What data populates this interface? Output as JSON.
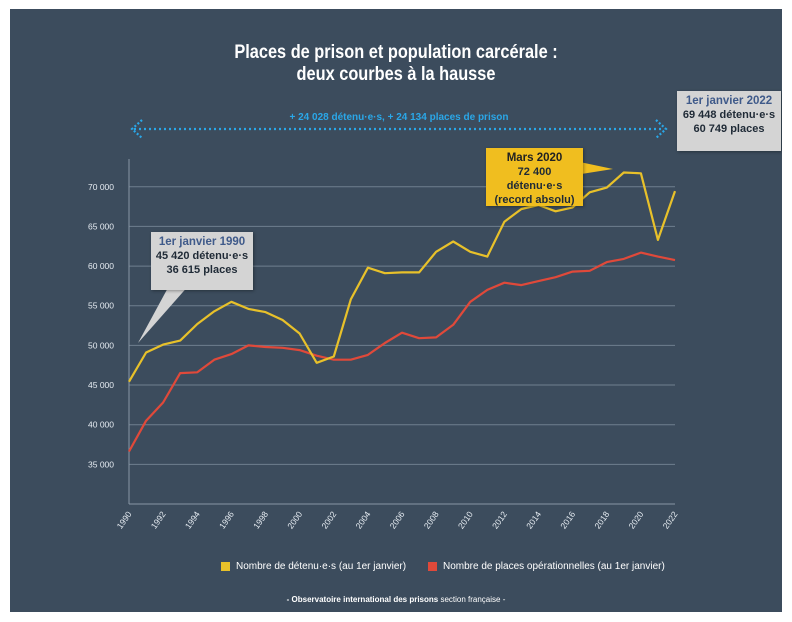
{
  "title_line1": "Places de prison et population carcérale :",
  "title_line2": "deux courbes à la hausse",
  "banner_text": "+ 24 028 détenu·e·s, + 24 134 places de prison",
  "callouts": {
    "c1990": {
      "line1": "1er janvier 1990",
      "line2": "45 420 détenu·e·s",
      "line3": "36 615 places"
    },
    "c2020": {
      "line1": "Mars 2020",
      "line2": "72 400 détenu·e·s",
      "line3": "(record absolu)"
    },
    "c2022": {
      "line1": "1er janvier 2022",
      "line2": "69 448 détenu·e·s",
      "line3": "60 749 places"
    }
  },
  "credit_bold": "- Observatoire international des prisons",
  "credit_normal": "section française -",
  "colors": {
    "background": "#3c4c5d",
    "detenus": "#e8c12a",
    "places": "#e0493a",
    "banner": "#2aa7e8"
  },
  "chart_data": {
    "type": "line",
    "x": [
      1990,
      1991,
      1992,
      1993,
      1994,
      1995,
      1996,
      1997,
      1998,
      1999,
      2000,
      2001,
      2002,
      2003,
      2004,
      2005,
      2006,
      2007,
      2008,
      2009,
      2010,
      2011,
      2012,
      2013,
      2014,
      2015,
      2016,
      2017,
      2018,
      2019,
      2020,
      2021,
      2022
    ],
    "x_tick_labels": [
      "1990",
      "1992",
      "1994",
      "1996",
      "1998",
      "2000",
      "2002",
      "2004",
      "2006",
      "2008",
      "2010",
      "2012",
      "2014",
      "2016",
      "2018",
      "2020",
      "2022"
    ],
    "y_tick_labels": [
      "35 000",
      "40 000",
      "45 000",
      "50 000",
      "55 000",
      "60 000",
      "65 000",
      "70 000"
    ],
    "ylim": [
      30000,
      73500
    ],
    "grid": true,
    "legend_position": "bottom",
    "series": [
      {
        "name": "Nombre de détenu·e·s (au 1er janvier)",
        "values": [
          45420,
          49100,
          50100,
          50600,
          52700,
          54300,
          55500,
          54600,
          54200,
          53200,
          51500,
          47800,
          48600,
          55800,
          59800,
          59100,
          59200,
          59200,
          61800,
          63100,
          61800,
          61200,
          65600,
          67200,
          67700,
          66900,
          67400,
          69300,
          69900,
          71800,
          71700,
          63300,
          69448
        ]
      },
      {
        "name": "Nombre de places opérationnelles (au 1er janvier)",
        "values": [
          36615,
          40500,
          42800,
          46500,
          46600,
          48200,
          48900,
          50000,
          49800,
          49700,
          49400,
          48700,
          48200,
          48200,
          48800,
          50300,
          51600,
          50900,
          51000,
          52600,
          55500,
          57000,
          57900,
          57600,
          58100,
          58600,
          59300,
          59400,
          60500,
          60900,
          61700,
          61200,
          60749
        ]
      }
    ]
  }
}
